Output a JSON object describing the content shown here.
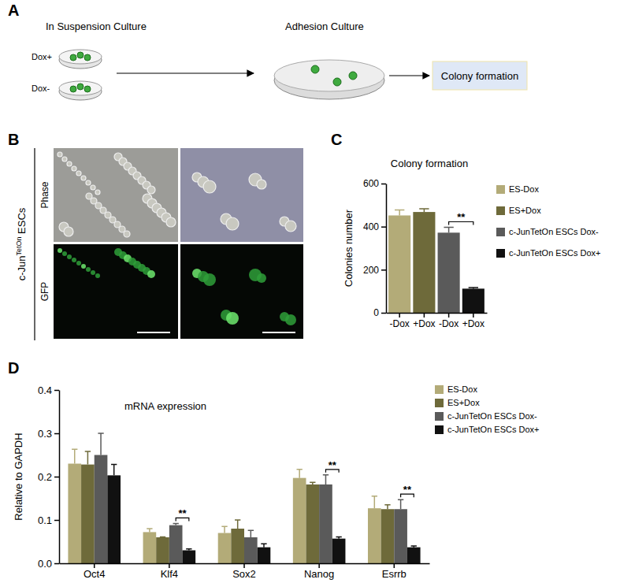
{
  "diagram": {
    "label": "A",
    "steps": [
      {
        "title": "In Suspension Culture",
        "dishes": [
          "Dox+",
          "Dox-"
        ]
      },
      {
        "title": "Adhesion Culture"
      },
      {
        "title": "Colony formation"
      }
    ]
  },
  "images": {
    "label": "B",
    "row_title": [
      "c-Jun",
      "TetOn",
      " ESCs"
    ],
    "rows": [
      "Phase",
      "GFP"
    ]
  },
  "chart_data": [
    {
      "type": "bar",
      "panel_label": "C",
      "title": "Colony formation",
      "y_label": "Colonies number",
      "categories": [
        "-Dox",
        "+Dox",
        "-Dox",
        "+Dox"
      ],
      "series": [
        {
          "name": "ES-Dox",
          "color": "#b3ab78",
          "values": [
            452,
            null,
            null,
            null
          ],
          "errors": [
            25,
            null,
            null,
            null
          ]
        },
        {
          "name": "ES+Dox",
          "color": "#6e6a3a",
          "values": [
            null,
            468,
            null,
            null
          ],
          "errors": [
            null,
            15,
            null,
            null
          ]
        },
        {
          "name": "c-JunTetOn ESCs Dox-",
          "color": "#5a5a5a",
          "values": [
            null,
            null,
            372,
            null
          ],
          "errors": [
            null,
            null,
            25,
            null
          ]
        },
        {
          "name": "c-JunTetOn ESCs Dox+",
          "color": "#111111",
          "values": [
            null,
            null,
            null,
            112
          ],
          "errors": [
            null,
            null,
            null,
            5
          ]
        }
      ],
      "ylim": [
        0,
        600
      ],
      "yticks": [
        0,
        200,
        400,
        600
      ],
      "grid": false,
      "annotations": [
        {
          "text": "**",
          "between": [
            2,
            3
          ]
        }
      ]
    },
    {
      "type": "bar",
      "panel_label": "D",
      "title": "mRNA expression",
      "y_label": "Relative to GAPDH",
      "categories": [
        "Oct4",
        "Klf4",
        "Sox2",
        "Nanog",
        "Esrrb"
      ],
      "series": [
        {
          "name": "ES-Dox",
          "color": "#b3ab78",
          "values": [
            0.23,
            0.072,
            0.07,
            0.197,
            0.127
          ],
          "errors": [
            0.033,
            0.008,
            0.015,
            0.02,
            0.028
          ]
        },
        {
          "name": "ES+Dox",
          "color": "#6e6a3a",
          "values": [
            0.228,
            0.06,
            0.08,
            0.182,
            0.125
          ],
          "errors": [
            0.03,
            0.001,
            0.02,
            0.005,
            0.01
          ]
        },
        {
          "name": "c-JunTetOn ESCs Dox-",
          "color": "#5a5a5a",
          "values": [
            0.25,
            0.088,
            0.06,
            0.182,
            0.125
          ],
          "errors": [
            0.05,
            0.004,
            0.016,
            0.022,
            0.022
          ]
        },
        {
          "name": "c-JunTetOn ESCs Dox+",
          "color": "#111111",
          "values": [
            0.203,
            0.03,
            0.037,
            0.057,
            0.037
          ],
          "errors": [
            0.025,
            0.003,
            0.008,
            0.004,
            0.003
          ]
        }
      ],
      "ylim": [
        0,
        0.4
      ],
      "yticks": [
        {
          "value": 0,
          "label": "0.0"
        },
        0.1,
        0.2,
        0.3,
        0.4
      ],
      "grid": false,
      "annotations": [
        {
          "text": "**",
          "category": 1,
          "between": [
            2,
            3
          ]
        },
        {
          "text": "**",
          "category": 3,
          "between": [
            2,
            3
          ]
        },
        {
          "text": "**",
          "category": 4,
          "between": [
            2,
            3
          ]
        }
      ]
    }
  ]
}
